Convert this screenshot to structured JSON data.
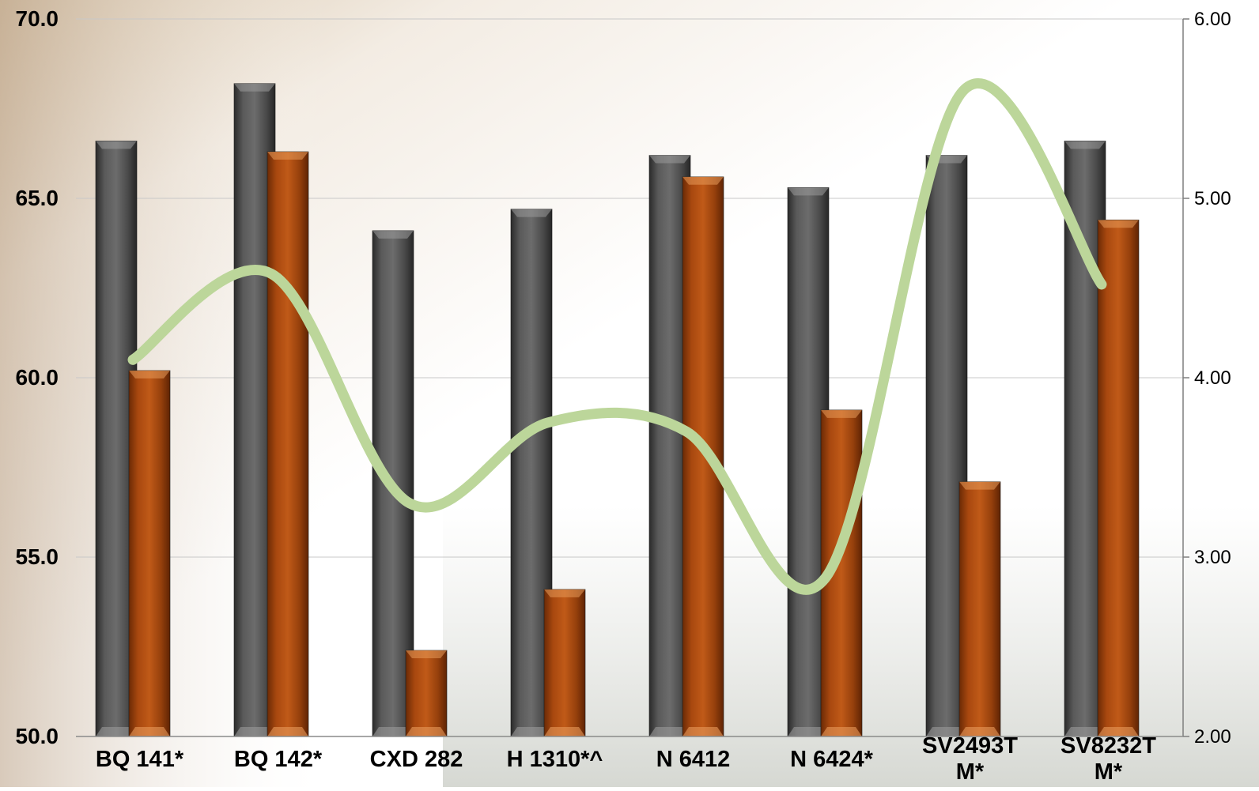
{
  "chart_data": {
    "type": "bar",
    "categories": [
      "BQ 141*",
      "BQ 142*",
      "CXD 282",
      "H 1310*^",
      "N 6412",
      "N 6424*",
      "SV2493T M*",
      "SV8232T M*"
    ],
    "category_label_lines": [
      [
        "BQ 141*"
      ],
      [
        "BQ 142*"
      ],
      [
        "CXD 282"
      ],
      [
        "H 1310*^"
      ],
      [
        "N 6412"
      ],
      [
        "N 6424*"
      ],
      [
        "SV2493T",
        "M*"
      ],
      [
        "SV8232T",
        "M*"
      ]
    ],
    "series": [
      {
        "type": "bar",
        "axis": "left",
        "color": "#4a4a4a",
        "values": [
          66.6,
          68.2,
          64.1,
          64.7,
          66.2,
          65.3,
          66.2,
          66.6
        ]
      },
      {
        "type": "bar",
        "axis": "left",
        "color": "#a84a10",
        "values": [
          60.2,
          66.3,
          52.4,
          54.1,
          65.6,
          59.1,
          57.1,
          64.4
        ]
      },
      {
        "type": "line",
        "axis": "right",
        "color": "#bcd69a",
        "values": [
          4.1,
          4.58,
          3.3,
          3.75,
          3.7,
          2.88,
          5.6,
          4.52
        ]
      }
    ],
    "y_left": {
      "ylim": [
        50,
        70
      ],
      "ticks": [
        "50.0",
        "55.0",
        "60.0",
        "65.0",
        "70.0"
      ]
    },
    "y_right": {
      "ylim": [
        2,
        6
      ],
      "ticks": [
        "2.00",
        "3.00",
        "4.00",
        "5.00",
        "6.00"
      ]
    },
    "grid": true,
    "legend": "none"
  }
}
